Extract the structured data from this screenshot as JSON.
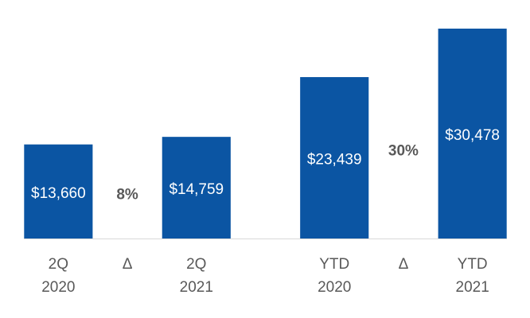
{
  "chart_data": {
    "type": "bar",
    "categories": [
      "2Q\n2020",
      "Δ",
      "2Q\n2021",
      null,
      "YTD\n2020",
      "Δ",
      "YTD\n2021"
    ],
    "values": [
      13660,
      null,
      14759,
      null,
      23439,
      null,
      30478
    ],
    "value_labels": [
      "$13,660",
      null,
      "$14,759",
      null,
      "$23,439",
      null,
      "$30,478"
    ],
    "changes": [
      null,
      8,
      null,
      null,
      null,
      30,
      null
    ],
    "change_labels": [
      null,
      "8%",
      null,
      null,
      null,
      "30%",
      null
    ],
    "color": "#0b55a3"
  }
}
